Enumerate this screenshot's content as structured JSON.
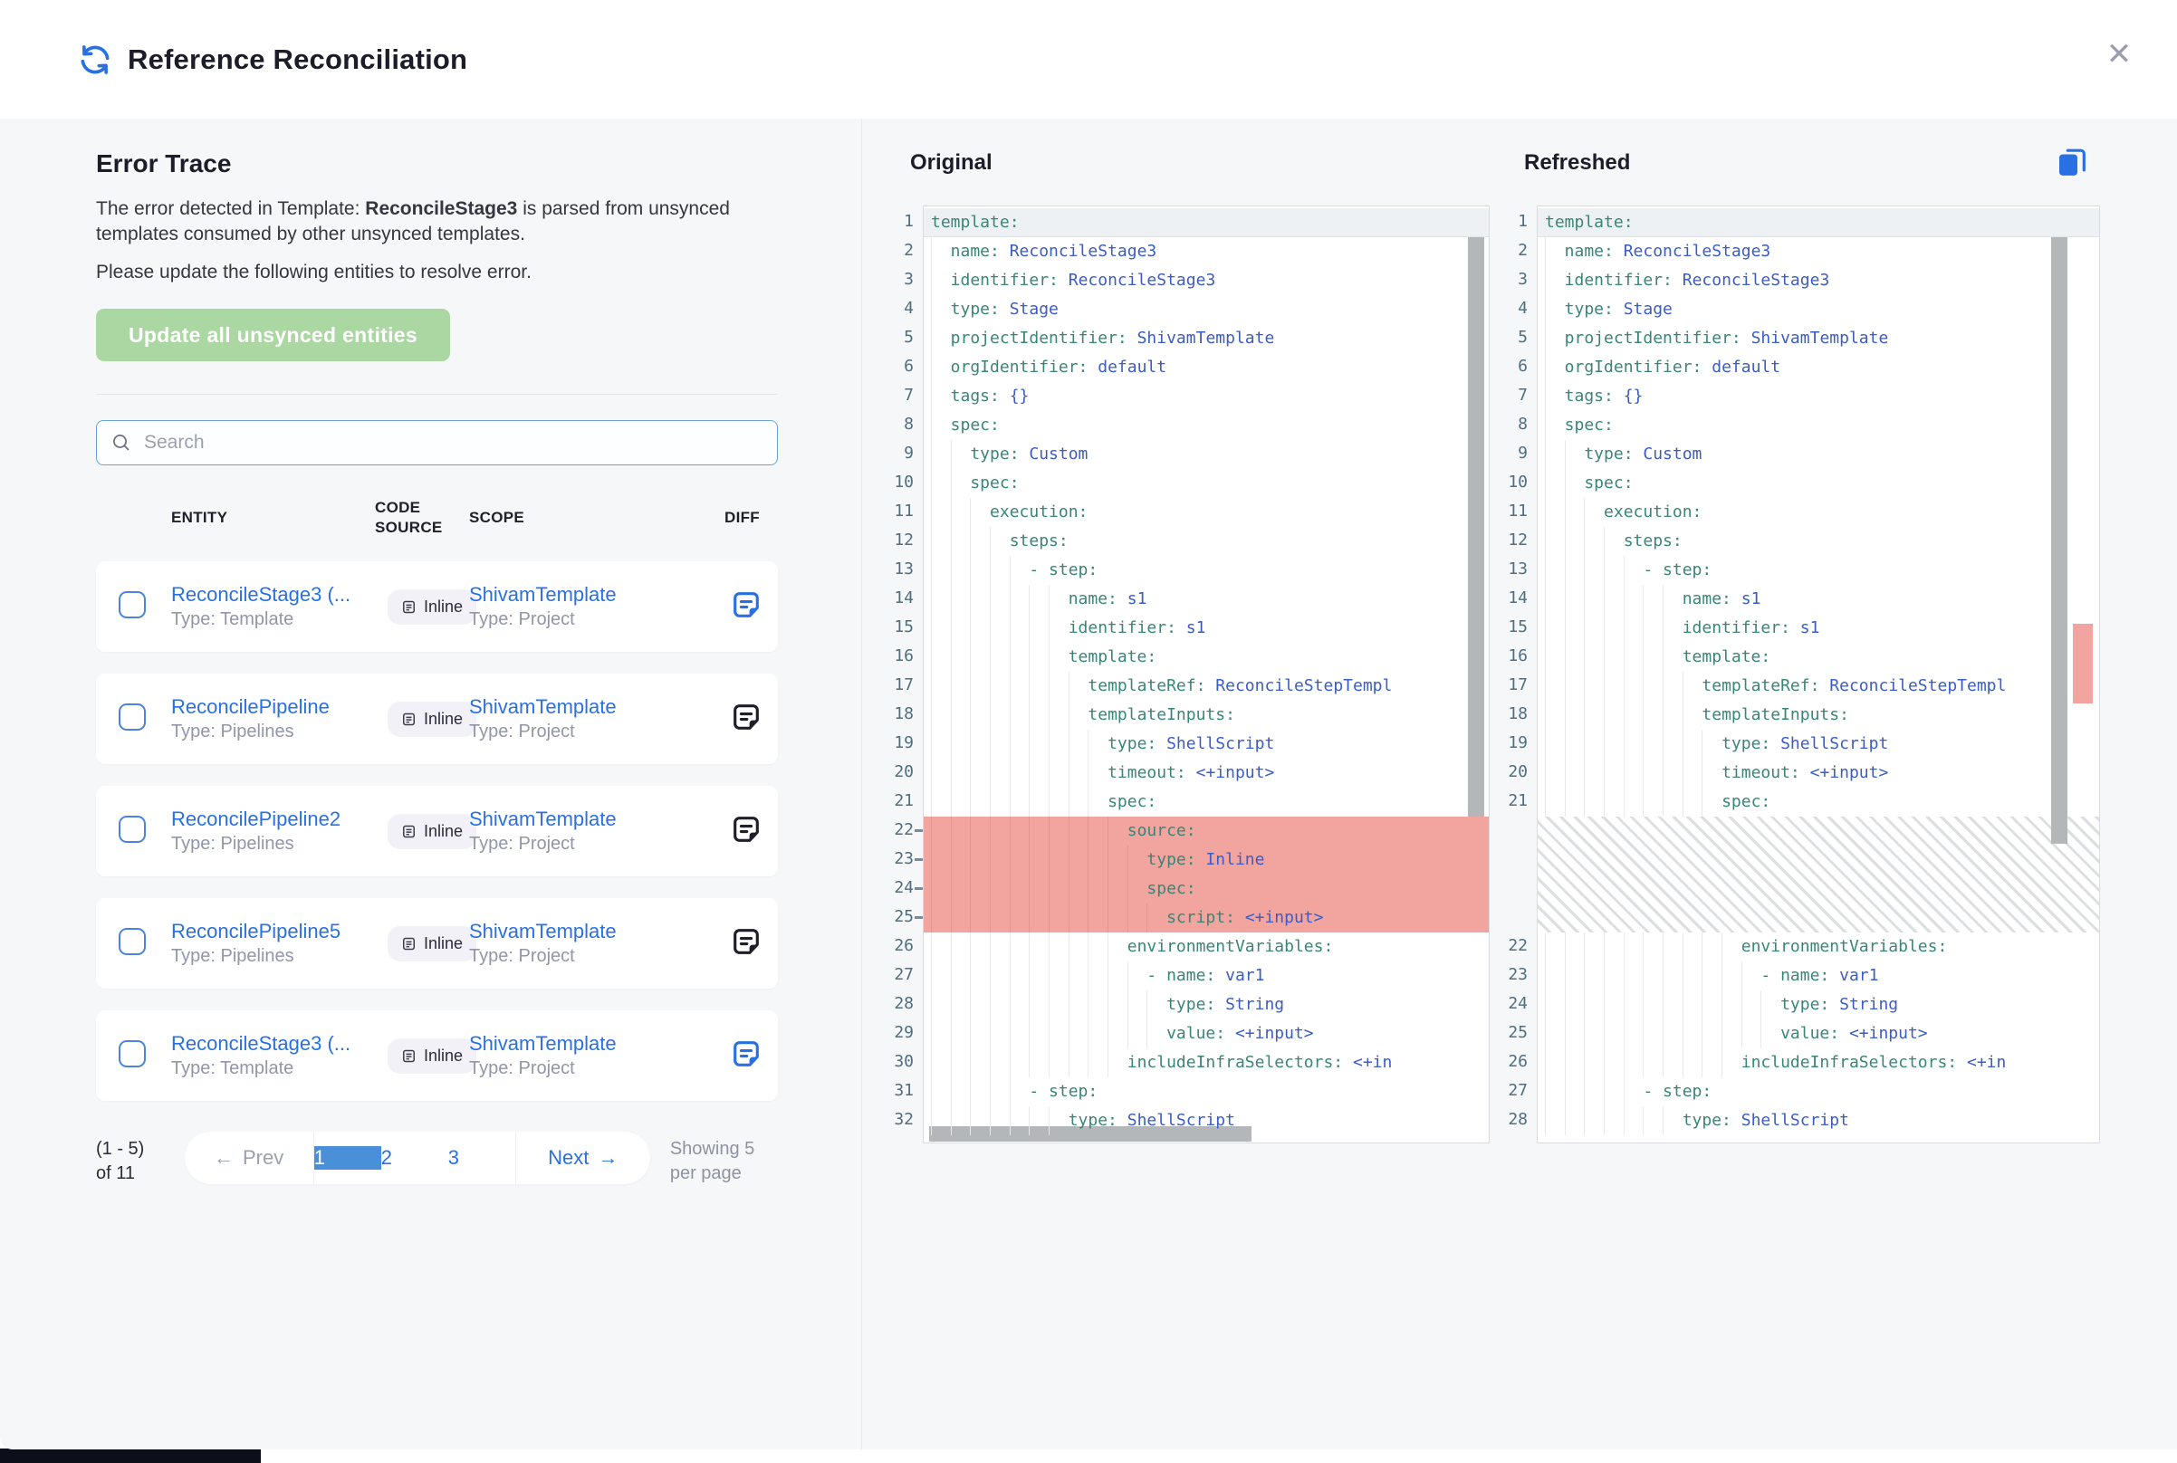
{
  "colors": {
    "accent_blue": "#2970e3",
    "active_page_blue": "#4a90d8",
    "disabled_green": "#aad7a2",
    "removed_red": "#f2a49e",
    "code_key_teal": "#3a8577",
    "code_value_blue": "#3c5cc5"
  },
  "header": {
    "title": "Reference Reconciliation",
    "close_glyph": "✕"
  },
  "error_trace": {
    "heading": "Error Trace",
    "desc_prefix": "The error detected in Template: ",
    "desc_bold": "ReconcileStage3",
    "desc_suffix": " is parsed from unsynced templates consumed by other unsynced templates.",
    "desc_line2": "Please update the following entities to resolve error.",
    "update_button": "Update all unsynced entities",
    "search_placeholder": "Search"
  },
  "table": {
    "headers": {
      "entity": "ENTITY",
      "code_source": "CODE SOURCE",
      "scope": "SCOPE",
      "diff": "DIFF"
    },
    "rows": [
      {
        "entity": "ReconcileStage3 (...",
        "entity_type": "Type: Template",
        "code_source": "Inline",
        "scope": "ShivamTemplate",
        "scope_type": "Type: Project",
        "diff_icon": "blue"
      },
      {
        "entity": "ReconcilePipeline",
        "entity_type": "Type: Pipelines",
        "code_source": "Inline",
        "scope": "ShivamTemplate",
        "scope_type": "Type: Project",
        "diff_icon": "dark"
      },
      {
        "entity": "ReconcilePipeline2",
        "entity_type": "Type: Pipelines",
        "code_source": "Inline",
        "scope": "ShivamTemplate",
        "scope_type": "Type: Project",
        "diff_icon": "dark"
      },
      {
        "entity": "ReconcilePipeline5",
        "entity_type": "Type: Pipelines",
        "code_source": "Inline",
        "scope": "ShivamTemplate",
        "scope_type": "Type: Project",
        "diff_icon": "dark"
      },
      {
        "entity": "ReconcileStage3 (...",
        "entity_type": "Type: Template",
        "code_source": "Inline",
        "scope": "ShivamTemplate",
        "scope_type": "Type: Project",
        "diff_icon": "blue"
      }
    ]
  },
  "pagination": {
    "range_text": "(1 - 5) of 11",
    "prev_arrow": "←",
    "prev_label": "Prev",
    "pages": [
      "1",
      "2",
      "3"
    ],
    "active_page": "1",
    "next_label": "Next",
    "next_arrow": "→",
    "showing_text": "Showing 5 per page"
  },
  "diff": {
    "original_title": "Original",
    "refreshed_title": "Refreshed",
    "original_lines": [
      {
        "n": 1,
        "i": 0,
        "k": "template",
        "active": true
      },
      {
        "n": 2,
        "i": 2,
        "k": "name",
        "v": "ReconcileStage3"
      },
      {
        "n": 3,
        "i": 2,
        "k": "identifier",
        "v": "ReconcileStage3"
      },
      {
        "n": 4,
        "i": 2,
        "k": "type",
        "v": "Stage"
      },
      {
        "n": 5,
        "i": 2,
        "k": "projectIdentifier",
        "v": "ShivamTemplate"
      },
      {
        "n": 6,
        "i": 2,
        "k": "orgIdentifier",
        "v": "default"
      },
      {
        "n": 7,
        "i": 2,
        "k": "tags",
        "v": "{}"
      },
      {
        "n": 8,
        "i": 2,
        "k": "spec"
      },
      {
        "n": 9,
        "i": 4,
        "k": "type",
        "v": "Custom"
      },
      {
        "n": 10,
        "i": 4,
        "k": "spec"
      },
      {
        "n": 11,
        "i": 6,
        "k": "execution"
      },
      {
        "n": 12,
        "i": 8,
        "k": "steps"
      },
      {
        "n": 13,
        "i": 10,
        "dash": true,
        "k": "step"
      },
      {
        "n": 14,
        "i": 14,
        "k": "name",
        "v": "s1"
      },
      {
        "n": 15,
        "i": 14,
        "k": "identifier",
        "v": "s1"
      },
      {
        "n": 16,
        "i": 14,
        "k": "template"
      },
      {
        "n": 17,
        "i": 16,
        "k": "templateRef",
        "v": "ReconcileStepTempl"
      },
      {
        "n": 18,
        "i": 16,
        "k": "templateInputs"
      },
      {
        "n": 19,
        "i": 18,
        "k": "type",
        "v": "ShellScript"
      },
      {
        "n": 20,
        "i": 18,
        "k": "timeout",
        "v": "<+input>"
      },
      {
        "n": 21,
        "i": 18,
        "k": "spec"
      },
      {
        "n": 22,
        "i": 20,
        "k": "source",
        "removed": true
      },
      {
        "n": 23,
        "i": 22,
        "k": "type",
        "v": "Inline",
        "removed": true
      },
      {
        "n": 24,
        "i": 22,
        "k": "spec",
        "removed": true
      },
      {
        "n": 25,
        "i": 24,
        "k": "script",
        "v": "<+input>",
        "removed": true
      },
      {
        "n": 26,
        "i": 20,
        "k": "environmentVariables"
      },
      {
        "n": 27,
        "i": 22,
        "dash": true,
        "k": "name",
        "v": "var1"
      },
      {
        "n": 28,
        "i": 24,
        "k": "type",
        "v": "String"
      },
      {
        "n": 29,
        "i": 24,
        "k": "value",
        "v": "<+input>"
      },
      {
        "n": 30,
        "i": 20,
        "k": "includeInfraSelectors",
        "v": "<+in"
      },
      {
        "n": 31,
        "i": 10,
        "dash": true,
        "k": "step"
      },
      {
        "n": 32,
        "i": 14,
        "k": "type",
        "v": "ShellScript"
      }
    ],
    "refreshed_lines": [
      {
        "n": 1,
        "i": 0,
        "k": "template",
        "active": true
      },
      {
        "n": 2,
        "i": 2,
        "k": "name",
        "v": "ReconcileStage3"
      },
      {
        "n": 3,
        "i": 2,
        "k": "identifier",
        "v": "ReconcileStage3"
      },
      {
        "n": 4,
        "i": 2,
        "k": "type",
        "v": "Stage"
      },
      {
        "n": 5,
        "i": 2,
        "k": "projectIdentifier",
        "v": "ShivamTemplate"
      },
      {
        "n": 6,
        "i": 2,
        "k": "orgIdentifier",
        "v": "default"
      },
      {
        "n": 7,
        "i": 2,
        "k": "tags",
        "v": "{}"
      },
      {
        "n": 8,
        "i": 2,
        "k": "spec"
      },
      {
        "n": 9,
        "i": 4,
        "k": "type",
        "v": "Custom"
      },
      {
        "n": 10,
        "i": 4,
        "k": "spec"
      },
      {
        "n": 11,
        "i": 6,
        "k": "execution"
      },
      {
        "n": 12,
        "i": 8,
        "k": "steps"
      },
      {
        "n": 13,
        "i": 10,
        "dash": true,
        "k": "step"
      },
      {
        "n": 14,
        "i": 14,
        "k": "name",
        "v": "s1"
      },
      {
        "n": 15,
        "i": 14,
        "k": "identifier",
        "v": "s1"
      },
      {
        "n": 16,
        "i": 14,
        "k": "template"
      },
      {
        "n": 17,
        "i": 16,
        "k": "templateRef",
        "v": "ReconcileStepTempl"
      },
      {
        "n": 18,
        "i": 16,
        "k": "templateInputs"
      },
      {
        "n": 19,
        "i": 18,
        "k": "type",
        "v": "ShellScript"
      },
      {
        "n": 20,
        "i": 18,
        "k": "timeout",
        "v": "<+input>"
      },
      {
        "n": 21,
        "i": 18,
        "k": "spec"
      },
      {
        "gap": true
      },
      {
        "n": 22,
        "i": 20,
        "k": "environmentVariables"
      },
      {
        "n": 23,
        "i": 22,
        "dash": true,
        "k": "name",
        "v": "var1"
      },
      {
        "n": 24,
        "i": 24,
        "k": "type",
        "v": "String"
      },
      {
        "n": 25,
        "i": 24,
        "k": "value",
        "v": "<+input>"
      },
      {
        "n": 26,
        "i": 20,
        "k": "includeInfraSelectors",
        "v": "<+in"
      },
      {
        "n": 27,
        "i": 10,
        "dash": true,
        "k": "step"
      },
      {
        "n": 28,
        "i": 14,
        "k": "type",
        "v": "ShellScript"
      }
    ]
  }
}
